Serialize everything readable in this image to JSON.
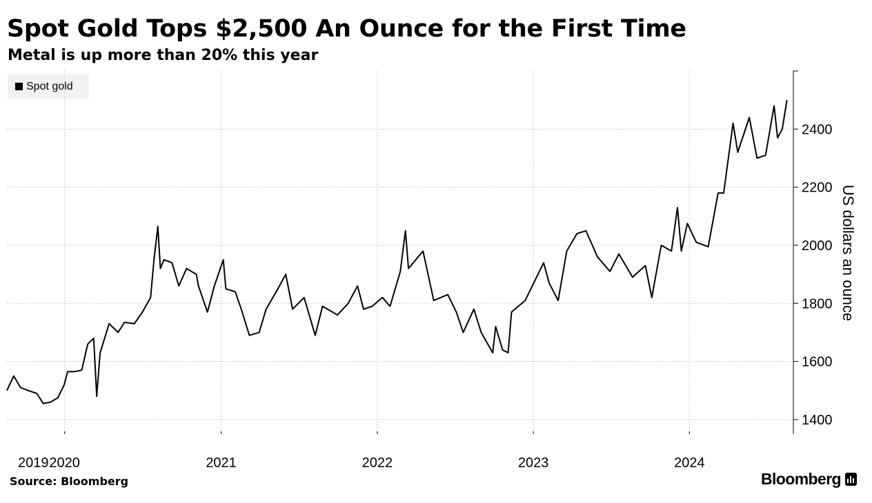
{
  "header": {
    "title": "Spot Gold Tops $2,500 An Ounce for the First Time",
    "subtitle": "Metal is up more than 20% this year"
  },
  "legend": {
    "label": "Spot gold",
    "color": "#000000"
  },
  "footer": {
    "source": "Source: Bloomberg",
    "brand": "Bloomberg",
    "brand_icon": "bloomberg-terminal-icon"
  },
  "chart_data": {
    "type": "line",
    "title": "Spot Gold Tops $2,500 An Ounce for the First Time",
    "subtitle": "Metal is up more than 20% this year",
    "ylabel": "US dollars an ounce",
    "xlabel": "",
    "ylim": [
      1350,
      2600
    ],
    "xlim": [
      "2019-08-19",
      "2024-08-31"
    ],
    "y_ticks": [
      1400,
      1600,
      1800,
      2000,
      2200,
      2400
    ],
    "x_ticks": [
      {
        "label": "2019",
        "date": "2019-08-19"
      },
      {
        "label": "2020",
        "date": "2020-01-01"
      },
      {
        "label": "2021",
        "date": "2021-01-01"
      },
      {
        "label": "2022",
        "date": "2022-01-01"
      },
      {
        "label": "2023",
        "date": "2023-01-01"
      },
      {
        "label": "2024",
        "date": "2024-01-01"
      }
    ],
    "y_axis_position": "right",
    "grid": true,
    "legend_position": "top-left",
    "series": [
      {
        "name": "Spot gold",
        "color": "#000000",
        "points": [
          [
            "2019-08-19",
            1500
          ],
          [
            "2019-09-04",
            1550
          ],
          [
            "2019-09-20",
            1510
          ],
          [
            "2019-10-08",
            1500
          ],
          [
            "2019-10-28",
            1490
          ],
          [
            "2019-11-12",
            1455
          ],
          [
            "2019-11-29",
            1460
          ],
          [
            "2019-12-16",
            1475
          ],
          [
            "2019-12-31",
            1520
          ],
          [
            "2020-01-08",
            1565
          ],
          [
            "2020-01-24",
            1565
          ],
          [
            "2020-02-10",
            1570
          ],
          [
            "2020-02-24",
            1660
          ],
          [
            "2020-03-09",
            1680
          ],
          [
            "2020-03-16",
            1480
          ],
          [
            "2020-03-24",
            1630
          ],
          [
            "2020-04-14",
            1730
          ],
          [
            "2020-05-05",
            1700
          ],
          [
            "2020-05-20",
            1735
          ],
          [
            "2020-06-12",
            1730
          ],
          [
            "2020-07-01",
            1770
          ],
          [
            "2020-07-20",
            1820
          ],
          [
            "2020-07-28",
            1950
          ],
          [
            "2020-08-06",
            2065
          ],
          [
            "2020-08-12",
            1920
          ],
          [
            "2020-08-20",
            1950
          ],
          [
            "2020-09-08",
            1940
          ],
          [
            "2020-09-24",
            1860
          ],
          [
            "2020-10-12",
            1920
          ],
          [
            "2020-11-04",
            1900
          ],
          [
            "2020-11-09",
            1860
          ],
          [
            "2020-11-30",
            1770
          ],
          [
            "2020-12-16",
            1860
          ],
          [
            "2021-01-06",
            1950
          ],
          [
            "2021-01-12",
            1850
          ],
          [
            "2021-02-03",
            1840
          ],
          [
            "2021-02-17",
            1780
          ],
          [
            "2021-03-08",
            1690
          ],
          [
            "2021-03-31",
            1700
          ],
          [
            "2021-04-16",
            1780
          ],
          [
            "2021-05-10",
            1840
          ],
          [
            "2021-06-01",
            1900
          ],
          [
            "2021-06-17",
            1780
          ],
          [
            "2021-07-14",
            1820
          ],
          [
            "2021-08-09",
            1690
          ],
          [
            "2021-08-26",
            1790
          ],
          [
            "2021-09-30",
            1760
          ],
          [
            "2021-10-25",
            1800
          ],
          [
            "2021-11-16",
            1860
          ],
          [
            "2021-11-30",
            1780
          ],
          [
            "2021-12-20",
            1790
          ],
          [
            "2022-01-13",
            1820
          ],
          [
            "2022-01-31",
            1790
          ],
          [
            "2022-02-24",
            1910
          ],
          [
            "2022-03-08",
            2050
          ],
          [
            "2022-03-15",
            1920
          ],
          [
            "2022-04-18",
            1980
          ],
          [
            "2022-05-13",
            1810
          ],
          [
            "2022-06-15",
            1830
          ],
          [
            "2022-07-05",
            1770
          ],
          [
            "2022-07-21",
            1700
          ],
          [
            "2022-08-15",
            1780
          ],
          [
            "2022-09-01",
            1700
          ],
          [
            "2022-09-28",
            1630
          ],
          [
            "2022-10-05",
            1720
          ],
          [
            "2022-10-21",
            1640
          ],
          [
            "2022-11-03",
            1630
          ],
          [
            "2022-11-11",
            1770
          ],
          [
            "2022-12-13",
            1810
          ],
          [
            "2023-01-25",
            1940
          ],
          [
            "2023-02-07",
            1870
          ],
          [
            "2023-02-28",
            1810
          ],
          [
            "2023-03-20",
            1980
          ],
          [
            "2023-04-13",
            2040
          ],
          [
            "2023-05-04",
            2050
          ],
          [
            "2023-05-31",
            1960
          ],
          [
            "2023-06-29",
            1910
          ],
          [
            "2023-07-20",
            1970
          ],
          [
            "2023-08-21",
            1890
          ],
          [
            "2023-09-20",
            1930
          ],
          [
            "2023-10-05",
            1820
          ],
          [
            "2023-10-27",
            2000
          ],
          [
            "2023-11-20",
            1980
          ],
          [
            "2023-12-04",
            2130
          ],
          [
            "2023-12-13",
            1980
          ],
          [
            "2023-12-27",
            2075
          ],
          [
            "2024-01-17",
            2010
          ],
          [
            "2024-02-14",
            1995
          ],
          [
            "2024-03-08",
            2180
          ],
          [
            "2024-03-21",
            2180
          ],
          [
            "2024-04-12",
            2420
          ],
          [
            "2024-04-23",
            2320
          ],
          [
            "2024-05-20",
            2440
          ],
          [
            "2024-06-07",
            2300
          ],
          [
            "2024-06-27",
            2310
          ],
          [
            "2024-07-17",
            2480
          ],
          [
            "2024-07-25",
            2370
          ],
          [
            "2024-08-05",
            2400
          ],
          [
            "2024-08-16",
            2500
          ]
        ]
      }
    ]
  }
}
